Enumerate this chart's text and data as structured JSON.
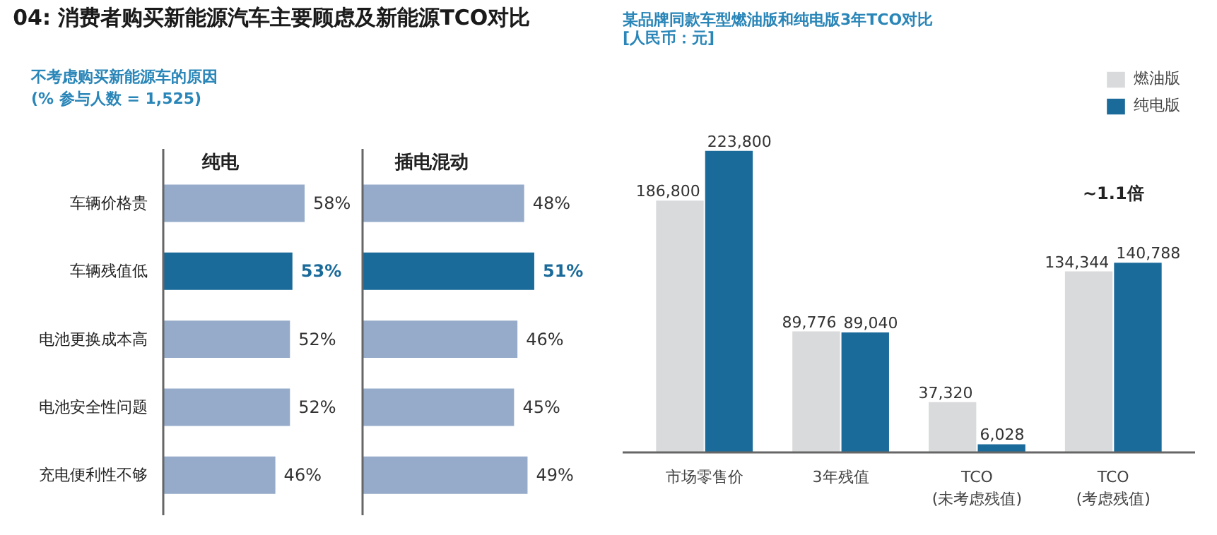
{
  "chart_data": [
    {
      "type": "other",
      "title": "04: 消费者购买新能源汽车主要顾虑及新能源TCO对比",
      "subtitle": "不考虑购买新能源车的原因\n(% 参与人数 = 1,525)"
    },
    {
      "type": "bar",
      "orientation": "horizontal",
      "title": "纯电",
      "categories": [
        "车辆价格贵",
        "车辆残值低",
        "电池更换成本高",
        "电池安全性问题",
        "充电便利性不够"
      ],
      "values": [
        58,
        53,
        52,
        52,
        46
      ],
      "value_labels": [
        "58%",
        "53%",
        "52%",
        "52%",
        "46%"
      ],
      "colors": [
        "#95abc9",
        "#1a6a9a",
        "#95abc9",
        "#95abc9",
        "#95abc9"
      ]
    },
    {
      "type": "bar",
      "orientation": "horizontal",
      "title": "插电混动",
      "categories": [
        null,
        null,
        null,
        null,
        null
      ],
      "values": [
        48,
        51,
        46,
        45,
        49
      ],
      "value_labels": [
        "48%",
        "51%",
        "46%",
        "45%",
        "49%"
      ],
      "colors": [
        "#95abc9",
        "#1a6a9a",
        "#95abc9",
        "#95abc9",
        "#95abc9"
      ]
    },
    {
      "type": "bar",
      "title": "某品牌同款车型燃油版和纯电版3年TCO对比\n[人民币：元]",
      "categories": [
        "市场零售价",
        "3年残值",
        "TCO\n(未考虑残值)",
        "TCO\n(考虑残值)"
      ],
      "legend": "top right",
      "grid": false,
      "series": [
        {
          "name": "燃油版",
          "color": "#d9dadc",
          "values": [
            186800,
            89776,
            37320,
            134344
          ],
          "value_labels": [
            "186,800",
            "89,776",
            "37,320",
            "134,344"
          ]
        },
        {
          "name": "纯电版",
          "color": "#1a6a9a",
          "values": [
            223800,
            89040,
            6028,
            140788
          ],
          "value_labels": [
            "223,800",
            "89,040",
            "6,028",
            "140,788"
          ]
        }
      ],
      "annotations": [
        "~1.1倍"
      ]
    }
  ]
}
